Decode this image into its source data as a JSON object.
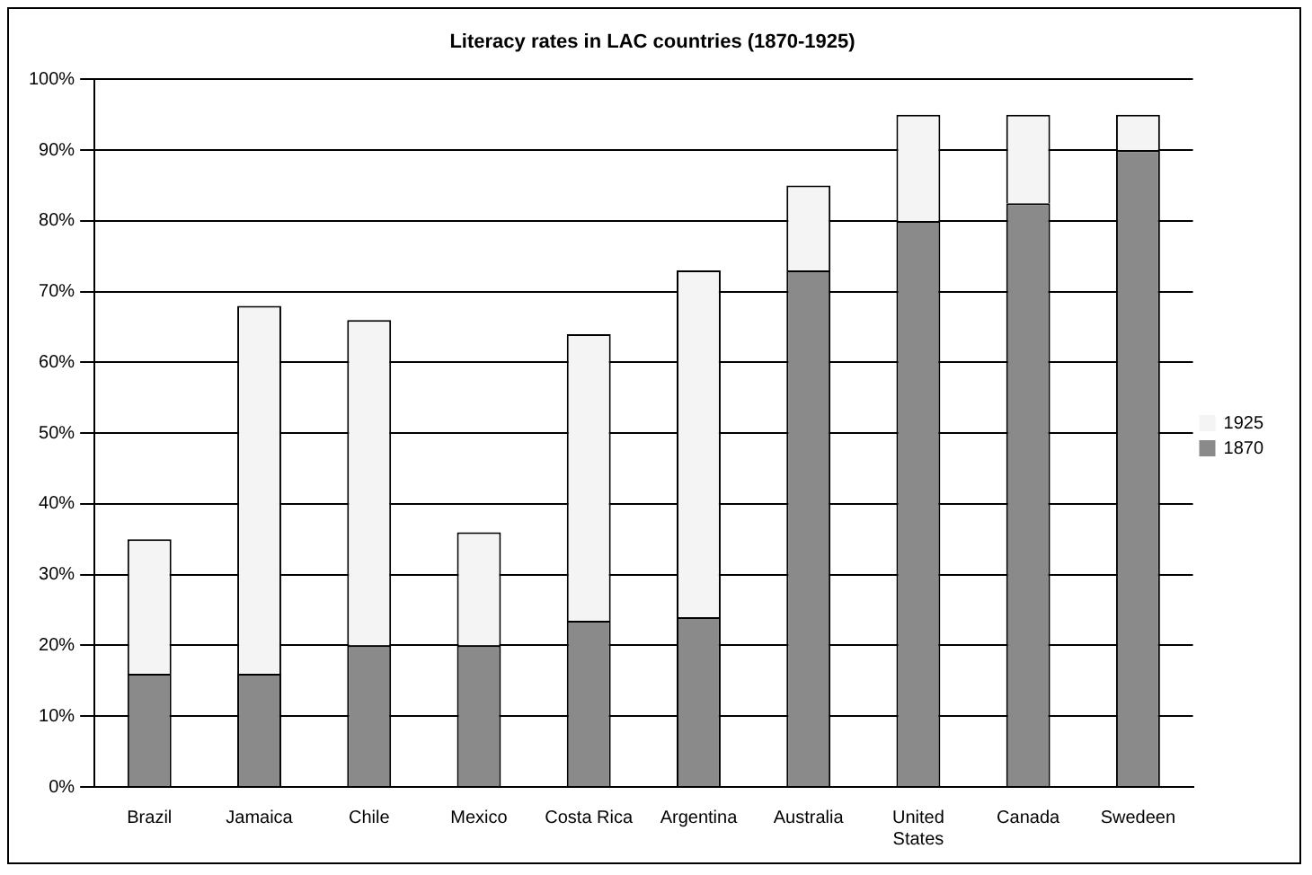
{
  "chart_data": {
    "type": "bar",
    "title": "Literacy rates in LAC countries (1870-1925)",
    "stacked": true,
    "categories": [
      "Brazil",
      "Jamaica",
      "Chile",
      "Mexico",
      "Costa Rica",
      "Argentina",
      "Australia",
      "United States",
      "Canada",
      "Swedeen"
    ],
    "series": [
      {
        "name": "1870",
        "color": "#8a8a8a",
        "values": [
          16,
          16,
          20,
          20,
          23.5,
          24,
          73,
          80,
          82.5,
          90
        ]
      },
      {
        "name": "1925",
        "color": "#f4f4f4",
        "values": [
          19,
          52,
          46,
          16,
          40.5,
          49,
          12,
          15,
          12.5,
          5
        ]
      }
    ],
    "ylim": [
      0,
      100
    ],
    "yticks": [
      {
        "value": 0,
        "label": "0%"
      },
      {
        "value": 10,
        "label": "10%"
      },
      {
        "value": 20,
        "label": "20%"
      },
      {
        "value": 30,
        "label": "30%"
      },
      {
        "value": 40,
        "label": "40%"
      },
      {
        "value": 50,
        "label": "50%"
      },
      {
        "value": 60,
        "label": "60%"
      },
      {
        "value": 70,
        "label": "70%"
      },
      {
        "value": 80,
        "label": "80%"
      },
      {
        "value": 90,
        "label": "90%"
      },
      {
        "value": 100,
        "label": "100%"
      }
    ],
    "grid": "y",
    "legend": "right"
  }
}
